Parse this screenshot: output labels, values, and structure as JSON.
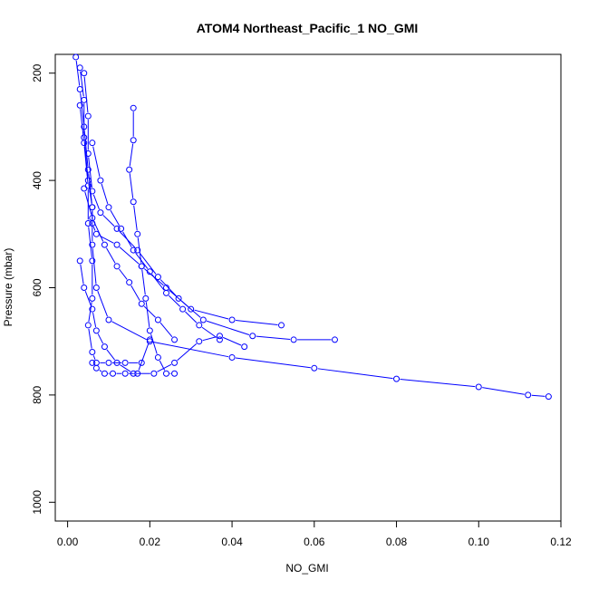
{
  "chart_data": {
    "type": "line",
    "title": "ATOM4 Northeast_Pacific_1 NO_GMI",
    "xlabel": "NO_GMI",
    "ylabel": "Pressure (mbar)",
    "xlim": [
      -0.003,
      0.12
    ],
    "ylim": [
      1035,
      165
    ],
    "y_reversed": true,
    "grid": false,
    "legend": "none",
    "x_ticks": [
      0.0,
      0.02,
      0.04,
      0.06,
      0.08,
      0.1,
      0.12
    ],
    "x_tick_labels": [
      "0.00",
      "0.02",
      "0.04",
      "0.06",
      "0.08",
      "0.10",
      "0.12"
    ],
    "y_ticks": [
      200,
      400,
      600,
      800,
      1000
    ],
    "y_tick_labels": [
      "200",
      "400",
      "600",
      "800",
      "1000"
    ],
    "series_color": "#0000ff",
    "series": [
      {
        "x": [
          0.003,
          0.004,
          0.004,
          0.005,
          0.006,
          0.006,
          0.007,
          0.012,
          0.018,
          0.024,
          0.03,
          0.04,
          0.052
        ],
        "y": [
          190,
          250,
          320,
          400,
          450,
          480,
          500,
          520,
          560,
          600,
          640,
          660,
          670
        ]
      },
      {
        "x": [
          0.004,
          0.005,
          0.005,
          0.006,
          0.008,
          0.012,
          0.017,
          0.022,
          0.027,
          0.033,
          0.045,
          0.055,
          0.065
        ],
        "y": [
          200,
          280,
          350,
          420,
          460,
          490,
          530,
          580,
          620,
          660,
          690,
          697,
          697
        ]
      },
      {
        "x": [
          0.002,
          0.003,
          0.004,
          0.005,
          0.006,
          0.006,
          0.007,
          0.01,
          0.02,
          0.04,
          0.06,
          0.08,
          0.1,
          0.112,
          0.117
        ],
        "y": [
          170,
          230,
          300,
          380,
          450,
          520,
          600,
          660,
          700,
          730,
          750,
          770,
          785,
          800,
          803
        ]
      },
      {
        "x": [
          0.016,
          0.016,
          0.015,
          0.016,
          0.017,
          0.018,
          0.019,
          0.02,
          0.022,
          0.024,
          0.026
        ],
        "y": [
          265,
          325,
          380,
          440,
          500,
          560,
          620,
          680,
          730,
          760,
          760
        ]
      },
      {
        "x": [
          0.003,
          0.004,
          0.005,
          0.005,
          0.006,
          0.006,
          0.005,
          0.006,
          0.007,
          0.01,
          0.014,
          0.018
        ],
        "y": [
          260,
          330,
          410,
          480,
          550,
          620,
          670,
          720,
          740,
          740,
          740,
          740
        ]
      },
      {
        "x": [
          0.006,
          0.008,
          0.01,
          0.013,
          0.016,
          0.02,
          0.024,
          0.028,
          0.032,
          0.037
        ],
        "y": [
          330,
          400,
          450,
          490,
          530,
          570,
          610,
          640,
          670,
          697
        ]
      },
      {
        "x": [
          0.004,
          0.006,
          0.009,
          0.012,
          0.015,
          0.018,
          0.022,
          0.026
        ],
        "y": [
          415,
          470,
          520,
          560,
          590,
          630,
          660,
          697
        ]
      },
      {
        "x": [
          0.003,
          0.004,
          0.006,
          0.007,
          0.009,
          0.012,
          0.016,
          0.021,
          0.026,
          0.032,
          0.037,
          0.043
        ],
        "y": [
          550,
          600,
          640,
          680,
          710,
          740,
          760,
          760,
          740,
          700,
          690,
          710
        ]
      },
      {
        "x": [
          0.006,
          0.007,
          0.009,
          0.011,
          0.014,
          0.017,
          0.02
        ],
        "y": [
          740,
          750,
          760,
          760,
          760,
          760,
          697
        ]
      }
    ]
  }
}
